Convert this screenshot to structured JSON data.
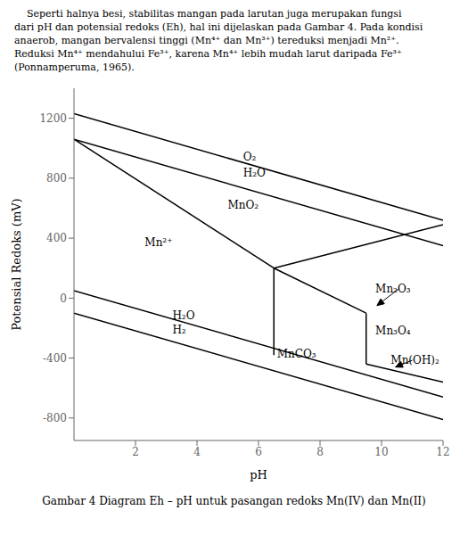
{
  "chart_data": {
    "type": "line",
    "title": "Gambar 4 Diagram Eh – pH untuk pasangan redoks Mn(IV) dan Mn(II)",
    "paragraph": [
      "    Seperti halnya besi, stabilitas mangan pada larutan juga merupakan fungsi",
      "dari pH dan potensial redoks (Eh), hal ini dijelaskan pada Gambar 4. Pada kondisi",
      "anaerob, mangan bervalensi tinggi (Mn⁴⁺ dan Mn³⁺) tereduksi menjadi Mn²⁺.",
      "Reduksi Mn⁴⁺ mendahului Fe³⁺, karena Mn⁴⁺ lebih mudah larut daripada Fe³⁺",
      "(Ponnamperuma, 1965)."
    ],
    "xlabel": "pH",
    "ylabel": "Potensial Redoks (mV)",
    "xlim": [
      0,
      12
    ],
    "ylim": [
      -950,
      1400
    ],
    "xticks": [
      2,
      4,
      6,
      8,
      10,
      12
    ],
    "yticks": [
      -800,
      -400,
      0,
      400,
      800,
      1200
    ],
    "color": "#000000",
    "series": [
      {
        "x": [
          0,
          12
        ],
        "values": [
          1230,
          520
        ]
      },
      {
        "x": [
          0,
          12
        ],
        "values": [
          1060,
          350
        ]
      },
      {
        "x": [
          0,
          12
        ],
        "values": [
          50,
          -660
        ]
      },
      {
        "x": [
          0,
          12
        ],
        "values": [
          -100,
          -810
        ]
      },
      {
        "x": [
          0,
          6.5
        ],
        "values": [
          1060,
          200
        ]
      },
      {
        "x": [
          6.5,
          6.5
        ],
        "values": [
          200,
          -380
        ]
      },
      {
        "x": [
          6.5,
          9.5
        ],
        "values": [
          200,
          -100
        ]
      },
      {
        "x": [
          9.5,
          9.5
        ],
        "values": [
          -100,
          -440
        ]
      },
      {
        "x": [
          9.5,
          12
        ],
        "values": [
          -440,
          -560
        ]
      },
      {
        "x": [
          6.5,
          12
        ],
        "values": [
          200,
          490
        ]
      }
    ],
    "annotations": [
      {
        "x": 5.5,
        "y": 940,
        "text": "O₂"
      },
      {
        "x": 5.5,
        "y": 835,
        "text": "H₂O"
      },
      {
        "x": 5.0,
        "y": 620,
        "text": "MnO₂"
      },
      {
        "x": 2.3,
        "y": 370,
        "text": "Mn²⁺"
      },
      {
        "x": 3.2,
        "y": -120,
        "text": "H₂O"
      },
      {
        "x": 3.2,
        "y": -210,
        "text": "H₂"
      },
      {
        "x": 6.6,
        "y": -375,
        "text": "MnCO₃"
      },
      {
        "x": 9.8,
        "y": 60,
        "text": "Mn₂O₃"
      },
      {
        "x": 9.8,
        "y": -220,
        "text": "Mn₃O₄"
      },
      {
        "x": 10.3,
        "y": -415,
        "text": "Mn(OH)₂"
      }
    ],
    "arrows": [
      {
        "x": 10.55,
        "y": 60,
        "x_head": 9.85,
        "y_head": -50
      },
      {
        "x": 11.0,
        "y": -415,
        "x_head": 10.45,
        "y_head": -460
      }
    ]
  }
}
